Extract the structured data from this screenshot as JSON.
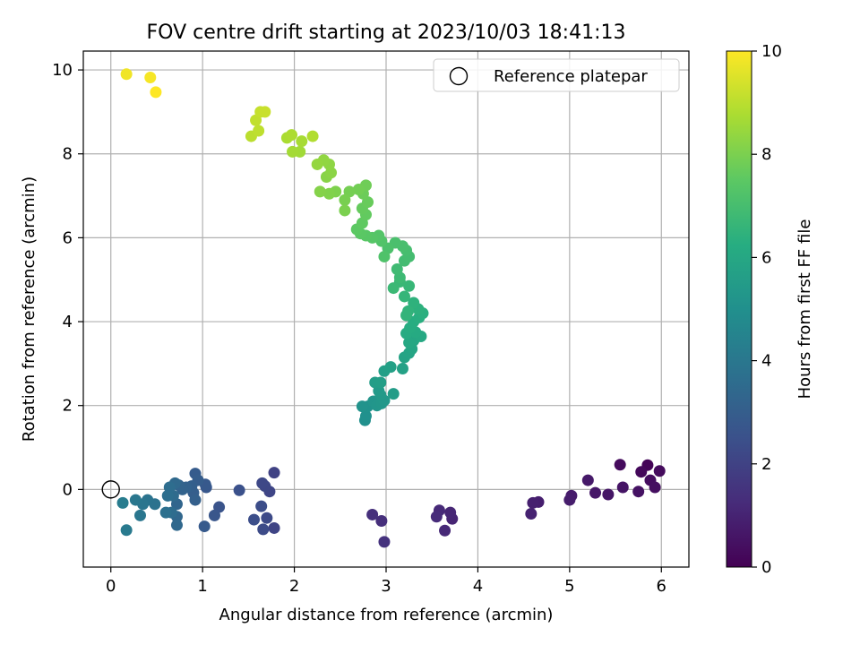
{
  "chart_data": {
    "type": "scatter",
    "title": "FOV centre drift starting at 2023/10/03 18:41:13",
    "xlabel": "Angular distance from reference (arcmin)",
    "ylabel": "Rotation from reference (arcmin)",
    "xlim": [
      -0.3,
      6.3
    ],
    "ylim": [
      -1.85,
      10.45
    ],
    "xticks": [
      0,
      1,
      2,
      3,
      4,
      5,
      6
    ],
    "yticks": [
      0,
      2,
      4,
      6,
      8,
      10
    ],
    "grid": true,
    "legend": {
      "position": "top-right",
      "entries": [
        "Reference platepar"
      ]
    },
    "reference_point": {
      "x": 0,
      "y": 0
    },
    "colorbar": {
      "label": "Hours from first FF file",
      "colormap": "viridis",
      "range": [
        0,
        10
      ],
      "ticks": [
        0,
        2,
        4,
        6,
        8,
        10
      ]
    },
    "points": [
      {
        "x": 5.85,
        "y": 0.58,
        "c": 0.1
      },
      {
        "x": 5.78,
        "y": 0.42,
        "c": 0.2
      },
      {
        "x": 5.98,
        "y": 0.44,
        "c": 0.3
      },
      {
        "x": 5.88,
        "y": 0.22,
        "c": 0.35
      },
      {
        "x": 5.93,
        "y": 0.05,
        "c": 0.4
      },
      {
        "x": 5.75,
        "y": -0.05,
        "c": 0.5
      },
      {
        "x": 5.55,
        "y": 0.59,
        "c": 0.3
      },
      {
        "x": 5.58,
        "y": 0.05,
        "c": 0.55
      },
      {
        "x": 5.42,
        "y": -0.12,
        "c": 0.6
      },
      {
        "x": 5.28,
        "y": -0.08,
        "c": 0.65
      },
      {
        "x": 5.2,
        "y": 0.22,
        "c": 0.7
      },
      {
        "x": 5.02,
        "y": -0.15,
        "c": 0.75
      },
      {
        "x": 5.0,
        "y": -0.25,
        "c": 0.8
      },
      {
        "x": 4.66,
        "y": -0.3,
        "c": 0.85
      },
      {
        "x": 4.6,
        "y": -0.32,
        "c": 0.9
      },
      {
        "x": 4.58,
        "y": -0.58,
        "c": 0.95
      },
      {
        "x": 3.72,
        "y": -0.7,
        "c": 1.05
      },
      {
        "x": 3.7,
        "y": -0.55,
        "c": 1.1
      },
      {
        "x": 3.64,
        "y": -0.98,
        "c": 1.15
      },
      {
        "x": 3.58,
        "y": -0.5,
        "c": 1.2
      },
      {
        "x": 3.55,
        "y": -0.65,
        "c": 1.25
      },
      {
        "x": 2.95,
        "y": -0.75,
        "c": 1.35
      },
      {
        "x": 2.85,
        "y": -0.6,
        "c": 1.4
      },
      {
        "x": 2.98,
        "y": -1.25,
        "c": 1.45
      },
      {
        "x": 1.78,
        "y": 0.4,
        "c": 2.0
      },
      {
        "x": 1.78,
        "y": -0.92,
        "c": 2.05
      },
      {
        "x": 1.73,
        "y": -0.05,
        "c": 2.1
      },
      {
        "x": 1.68,
        "y": 0.08,
        "c": 2.15
      },
      {
        "x": 1.65,
        "y": 0.15,
        "c": 2.2
      },
      {
        "x": 1.7,
        "y": -0.68,
        "c": 2.25
      },
      {
        "x": 1.66,
        "y": -0.95,
        "c": 2.3
      },
      {
        "x": 1.64,
        "y": -0.4,
        "c": 2.35
      },
      {
        "x": 1.56,
        "y": -0.72,
        "c": 2.4
      },
      {
        "x": 1.4,
        "y": -0.02,
        "c": 2.5
      },
      {
        "x": 1.18,
        "y": -0.42,
        "c": 2.6
      },
      {
        "x": 1.13,
        "y": -0.62,
        "c": 2.7
      },
      {
        "x": 1.04,
        "y": 0.05,
        "c": 2.75
      },
      {
        "x": 1.03,
        "y": 0.12,
        "c": 2.8
      },
      {
        "x": 1.02,
        "y": -0.88,
        "c": 2.85
      },
      {
        "x": 0.92,
        "y": 0.38,
        "c": 2.9
      },
      {
        "x": 0.95,
        "y": 0.22,
        "c": 2.95
      },
      {
        "x": 0.9,
        "y": -0.08,
        "c": 3.0
      },
      {
        "x": 0.88,
        "y": 0.08,
        "c": 3.05
      },
      {
        "x": 0.92,
        "y": -0.25,
        "c": 3.1
      },
      {
        "x": 0.82,
        "y": 0.05,
        "c": 3.15
      },
      {
        "x": 0.78,
        "y": 0.0,
        "c": 3.2
      },
      {
        "x": 0.74,
        "y": 0.1,
        "c": 3.25
      },
      {
        "x": 0.72,
        "y": -0.35,
        "c": 3.3
      },
      {
        "x": 0.72,
        "y": -0.65,
        "c": 3.35
      },
      {
        "x": 0.72,
        "y": -0.85,
        "c": 3.4
      },
      {
        "x": 0.7,
        "y": 0.15,
        "c": 3.45
      },
      {
        "x": 0.68,
        "y": -0.15,
        "c": 3.5
      },
      {
        "x": 0.66,
        "y": -0.55,
        "c": 3.55
      },
      {
        "x": 0.64,
        "y": 0.05,
        "c": 3.6
      },
      {
        "x": 0.62,
        "y": -0.15,
        "c": 3.65
      },
      {
        "x": 0.6,
        "y": -0.55,
        "c": 3.7
      },
      {
        "x": 0.48,
        "y": -0.35,
        "c": 3.8
      },
      {
        "x": 0.4,
        "y": -0.25,
        "c": 3.85
      },
      {
        "x": 0.35,
        "y": -0.35,
        "c": 3.9
      },
      {
        "x": 0.32,
        "y": -0.62,
        "c": 3.95
      },
      {
        "x": 0.27,
        "y": -0.25,
        "c": 4.0
      },
      {
        "x": 0.17,
        "y": -0.97,
        "c": 4.1
      },
      {
        "x": 0.13,
        "y": -0.32,
        "c": 4.2
      },
      {
        "x": 2.77,
        "y": 1.65,
        "c": 5.0
      },
      {
        "x": 2.78,
        "y": 1.75,
        "c": 5.05
      },
      {
        "x": 2.8,
        "y": 1.98,
        "c": 5.1
      },
      {
        "x": 2.74,
        "y": 1.98,
        "c": 5.15
      },
      {
        "x": 2.86,
        "y": 2.1,
        "c": 5.2
      },
      {
        "x": 2.9,
        "y": 2.0,
        "c": 5.25
      },
      {
        "x": 2.95,
        "y": 2.05,
        "c": 5.3
      },
      {
        "x": 2.98,
        "y": 2.12,
        "c": 5.35
      },
      {
        "x": 2.94,
        "y": 2.25,
        "c": 5.4
      },
      {
        "x": 2.92,
        "y": 2.35,
        "c": 5.45
      },
      {
        "x": 3.08,
        "y": 2.28,
        "c": 5.5
      },
      {
        "x": 2.88,
        "y": 2.55,
        "c": 5.55
      },
      {
        "x": 2.94,
        "y": 2.55,
        "c": 5.6
      },
      {
        "x": 2.98,
        "y": 2.82,
        "c": 5.65
      },
      {
        "x": 3.05,
        "y": 2.92,
        "c": 5.7
      },
      {
        "x": 3.18,
        "y": 2.88,
        "c": 5.75
      },
      {
        "x": 3.2,
        "y": 3.15,
        "c": 5.8
      },
      {
        "x": 3.25,
        "y": 3.25,
        "c": 5.85
      },
      {
        "x": 3.28,
        "y": 3.35,
        "c": 5.9
      },
      {
        "x": 3.3,
        "y": 3.55,
        "c": 5.95
      },
      {
        "x": 3.25,
        "y": 3.5,
        "c": 6.0
      },
      {
        "x": 3.38,
        "y": 3.65,
        "c": 6.05
      },
      {
        "x": 3.32,
        "y": 3.75,
        "c": 6.1
      },
      {
        "x": 3.22,
        "y": 3.72,
        "c": 6.15
      },
      {
        "x": 3.26,
        "y": 3.85,
        "c": 6.2
      },
      {
        "x": 3.3,
        "y": 4.0,
        "c": 6.25
      },
      {
        "x": 3.36,
        "y": 4.1,
        "c": 6.3
      },
      {
        "x": 3.4,
        "y": 4.2,
        "c": 6.35
      },
      {
        "x": 3.35,
        "y": 4.3,
        "c": 6.4
      },
      {
        "x": 3.3,
        "y": 4.45,
        "c": 6.45
      },
      {
        "x": 3.24,
        "y": 4.25,
        "c": 6.5
      },
      {
        "x": 3.22,
        "y": 4.15,
        "c": 6.55
      },
      {
        "x": 3.2,
        "y": 4.6,
        "c": 6.6
      },
      {
        "x": 3.25,
        "y": 4.85,
        "c": 6.65
      },
      {
        "x": 3.15,
        "y": 4.95,
        "c": 6.7
      },
      {
        "x": 3.08,
        "y": 4.8,
        "c": 6.75
      },
      {
        "x": 3.15,
        "y": 5.05,
        "c": 6.8
      },
      {
        "x": 3.12,
        "y": 5.25,
        "c": 6.85
      },
      {
        "x": 3.2,
        "y": 5.45,
        "c": 6.9
      },
      {
        "x": 3.25,
        "y": 5.55,
        "c": 6.95
      },
      {
        "x": 3.22,
        "y": 5.7,
        "c": 7.0
      },
      {
        "x": 3.18,
        "y": 5.8,
        "c": 7.05
      },
      {
        "x": 3.1,
        "y": 5.88,
        "c": 7.1
      },
      {
        "x": 3.02,
        "y": 5.75,
        "c": 7.15
      },
      {
        "x": 2.98,
        "y": 5.55,
        "c": 7.2
      },
      {
        "x": 2.95,
        "y": 5.92,
        "c": 7.25
      },
      {
        "x": 2.92,
        "y": 6.05,
        "c": 7.3
      },
      {
        "x": 2.85,
        "y": 6.0,
        "c": 7.35
      },
      {
        "x": 2.78,
        "y": 6.05,
        "c": 7.4
      },
      {
        "x": 2.72,
        "y": 6.1,
        "c": 7.45
      },
      {
        "x": 2.68,
        "y": 6.2,
        "c": 7.5
      },
      {
        "x": 2.74,
        "y": 6.35,
        "c": 7.55
      },
      {
        "x": 2.78,
        "y": 6.55,
        "c": 7.6
      },
      {
        "x": 2.74,
        "y": 6.7,
        "c": 7.65
      },
      {
        "x": 2.8,
        "y": 6.85,
        "c": 7.7
      },
      {
        "x": 2.75,
        "y": 7.05,
        "c": 7.75
      },
      {
        "x": 2.78,
        "y": 7.25,
        "c": 7.8
      },
      {
        "x": 2.7,
        "y": 7.15,
        "c": 7.85
      },
      {
        "x": 2.6,
        "y": 7.1,
        "c": 7.9
      },
      {
        "x": 2.55,
        "y": 6.9,
        "c": 7.95
      },
      {
        "x": 2.55,
        "y": 6.65,
        "c": 8.0
      },
      {
        "x": 2.45,
        "y": 7.1,
        "c": 8.05
      },
      {
        "x": 2.38,
        "y": 7.05,
        "c": 8.1
      },
      {
        "x": 2.28,
        "y": 7.1,
        "c": 8.15
      },
      {
        "x": 2.35,
        "y": 7.45,
        "c": 8.2
      },
      {
        "x": 2.4,
        "y": 7.55,
        "c": 8.25
      },
      {
        "x": 2.38,
        "y": 7.75,
        "c": 8.3
      },
      {
        "x": 2.32,
        "y": 7.85,
        "c": 8.35
      },
      {
        "x": 2.25,
        "y": 7.75,
        "c": 8.4
      },
      {
        "x": 2.06,
        "y": 8.05,
        "c": 8.6
      },
      {
        "x": 1.98,
        "y": 8.05,
        "c": 8.65
      },
      {
        "x": 2.08,
        "y": 8.3,
        "c": 8.7
      },
      {
        "x": 1.92,
        "y": 8.38,
        "c": 8.75
      },
      {
        "x": 1.97,
        "y": 8.45,
        "c": 8.8
      },
      {
        "x": 2.2,
        "y": 8.42,
        "c": 8.85
      },
      {
        "x": 1.53,
        "y": 8.42,
        "c": 9.0
      },
      {
        "x": 1.61,
        "y": 8.55,
        "c": 9.05
      },
      {
        "x": 1.58,
        "y": 8.8,
        "c": 9.1
      },
      {
        "x": 1.63,
        "y": 9.0,
        "c": 9.15
      },
      {
        "x": 1.68,
        "y": 9.0,
        "c": 9.2
      },
      {
        "x": 0.17,
        "y": 9.9,
        "c": 9.8
      },
      {
        "x": 0.43,
        "y": 9.82,
        "c": 9.9
      },
      {
        "x": 0.49,
        "y": 9.47,
        "c": 10.0
      }
    ]
  }
}
